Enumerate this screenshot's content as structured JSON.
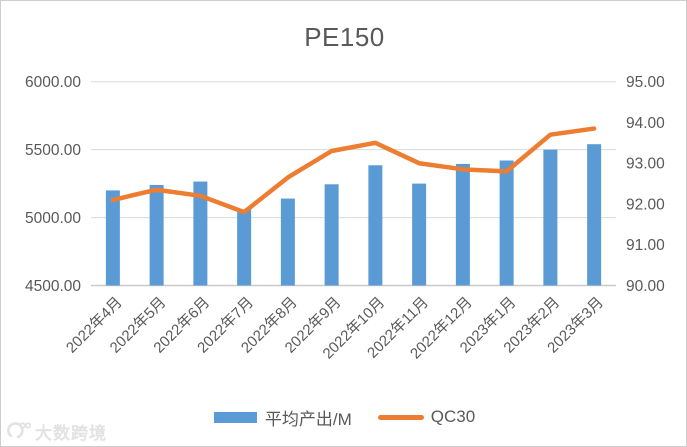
{
  "chart_data": {
    "type": "combo_bar_line",
    "title": "PE150",
    "categories": [
      "2022年4月",
      "2022年5月",
      "2022年6月",
      "2022年7月",
      "2022年8月",
      "2022年9月",
      "2022年10月",
      "2022年11月",
      "2022年12月",
      "2023年1月",
      "2023年2月",
      "2023年3月"
    ],
    "series": [
      {
        "name": "平均产出/M",
        "type": "bar",
        "axis": "left",
        "color": "#5B9BD5",
        "values": [
          5200,
          5240,
          5265,
          5060,
          5140,
          5245,
          5385,
          5250,
          5395,
          5420,
          5500,
          5540
        ]
      },
      {
        "name": "QC30",
        "type": "line",
        "axis": "right",
        "color": "#ED7D31",
        "values": [
          92.1,
          92.35,
          92.2,
          91.8,
          92.65,
          93.3,
          93.5,
          93.0,
          92.85,
          92.8,
          93.7,
          93.85
        ]
      }
    ],
    "left_axis": {
      "min": 4500,
      "max": 6000,
      "step": 500,
      "tick_labels": [
        "4500.00",
        "5000.00",
        "5500.00",
        "6000.00"
      ]
    },
    "right_axis": {
      "min": 90,
      "max": 95,
      "step": 1,
      "tick_labels": [
        "90.00",
        "91.00",
        "92.00",
        "93.00",
        "94.00",
        "95.00"
      ]
    },
    "grid": true,
    "legend_position": "bottom",
    "text_color": "#595959",
    "grid_color": "#D9D9D9",
    "axis_line_color": "#C9C9C9"
  },
  "watermark": {
    "text": "大数跨境"
  }
}
